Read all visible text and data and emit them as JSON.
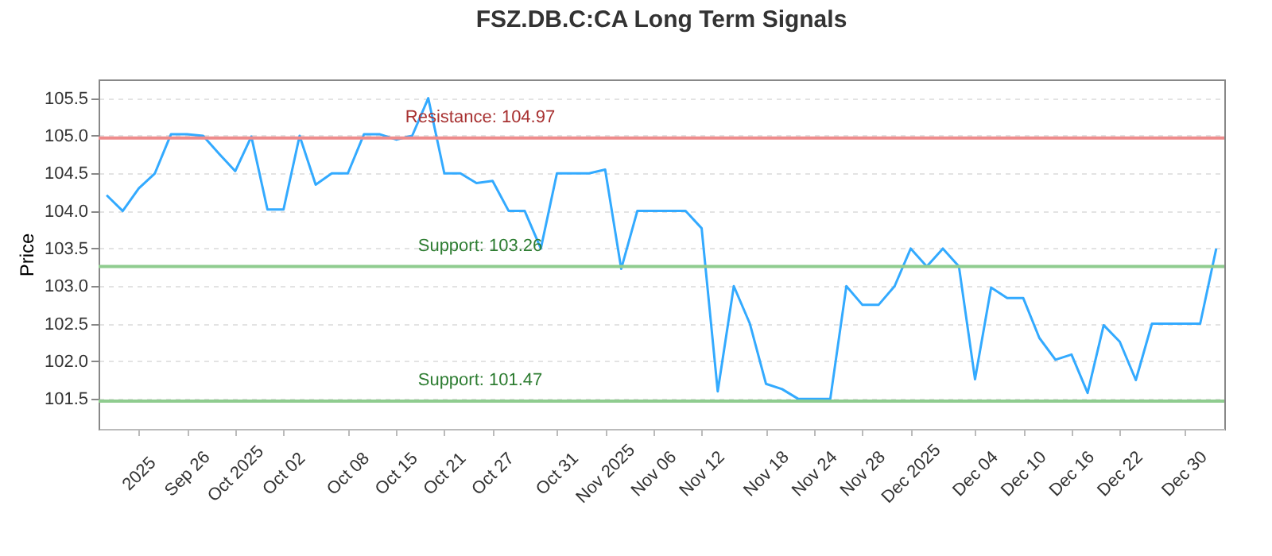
{
  "chart_data": {
    "type": "line",
    "title": "FSZ.DB.C:CA Long Term Signals",
    "ylabel": "Price",
    "categories": [
      null,
      null,
      "2025",
      null,
      null,
      "Sep 26",
      null,
      null,
      "Oct 2025",
      null,
      null,
      "Oct 02",
      null,
      null,
      null,
      "Oct 08",
      null,
      null,
      "Oct 15",
      null,
      null,
      "Oct 21",
      null,
      null,
      "Oct 27",
      null,
      null,
      null,
      "Oct 31",
      null,
      null,
      "Nov 2025",
      null,
      null,
      "Nov 06",
      null,
      null,
      "Nov 12",
      null,
      null,
      null,
      "Nov 18",
      null,
      null,
      "Nov 24",
      null,
      null,
      "Nov 28",
      null,
      null,
      "Dec 2025",
      null,
      null,
      null,
      "Dec 04",
      null,
      null,
      "Dec 10",
      null,
      null,
      "Dec 16",
      null,
      null,
      "Dec 22",
      null,
      null,
      null,
      "Dec 30",
      null,
      null
    ],
    "series": [
      {
        "color": "#33aaff",
        "values": [
          104.21,
          104.0,
          104.3,
          104.5,
          105.02,
          105.02,
          105.0,
          104.76,
          104.53,
          104.99,
          104.02,
          104.02,
          105.0,
          104.35,
          104.5,
          104.5,
          105.02,
          105.02,
          104.95,
          105.0,
          105.5,
          104.5,
          104.5,
          104.37,
          104.4,
          104.0,
          104.0,
          103.5,
          104.5,
          104.5,
          104.5,
          104.55,
          103.23,
          104.0,
          104.0,
          104.0,
          104.0,
          103.77,
          101.6,
          103.0,
          102.5,
          101.7,
          101.63,
          101.5,
          101.5,
          101.5,
          103.0,
          102.75,
          102.75,
          103.0,
          103.5,
          103.26,
          103.5,
          103.26,
          101.76,
          102.98,
          102.84,
          102.84,
          102.31,
          102.02,
          102.09,
          101.58,
          102.48,
          102.26,
          101.75,
          102.5,
          102.5,
          102.5,
          102.5,
          103.5
        ]
      }
    ],
    "ylim": [
      101.1,
      105.75
    ],
    "yticks": [
      101.5,
      {
        "value": 102,
        "label": "102.0"
      },
      102.5,
      {
        "value": 103,
        "label": "103.0"
      },
      103.5,
      {
        "value": 104,
        "label": "104.0"
      },
      104.5,
      {
        "value": 105,
        "label": "105.0"
      },
      105.5
    ],
    "grid": "y",
    "marker": "none",
    "line_style": "solid",
    "ref_lines": [
      {
        "axis": "y",
        "value": 104.97,
        "label": "Resistance: 104.97",
        "color": "#ee8c8c"
      },
      {
        "axis": "y",
        "value": 103.26,
        "label": "Support: 103.26",
        "color": "#8fcc8f"
      },
      {
        "axis": "y",
        "value": 101.47,
        "label": "Support: 101.47",
        "color": "#8fcc8f"
      }
    ]
  }
}
